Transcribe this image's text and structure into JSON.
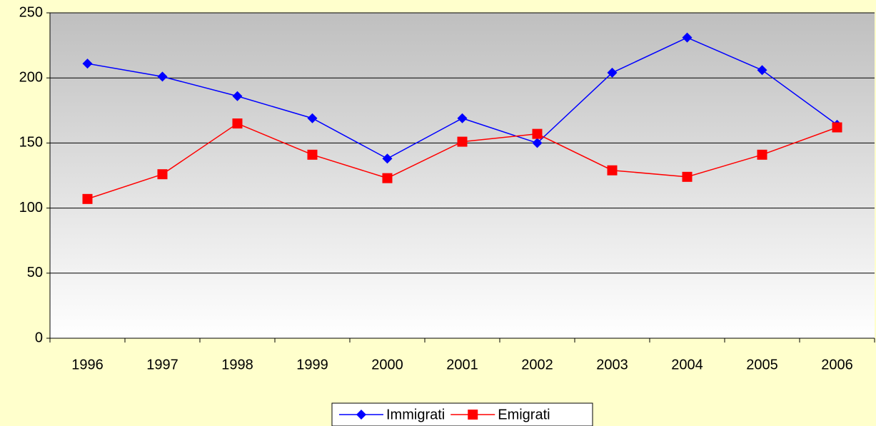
{
  "chart_data": {
    "type": "line",
    "categories": [
      "1996",
      "1997",
      "1998",
      "1999",
      "2000",
      "2001",
      "2002",
      "2003",
      "2004",
      "2005",
      "2006"
    ],
    "series": [
      {
        "name": "Immigrati",
        "color": "#0000ff",
        "marker": "diamond",
        "values": [
          211,
          201,
          186,
          169,
          138,
          169,
          150,
          204,
          231,
          206,
          164
        ]
      },
      {
        "name": "Emigrati",
        "color": "#ff0000",
        "marker": "square",
        "values": [
          107,
          126,
          165,
          141,
          123,
          151,
          157,
          129,
          124,
          141,
          162
        ]
      }
    ],
    "ylim": [
      0,
      250
    ],
    "yticks": [
      0,
      50,
      100,
      150,
      200,
      250
    ],
    "grid": true,
    "legend": "bottom"
  }
}
